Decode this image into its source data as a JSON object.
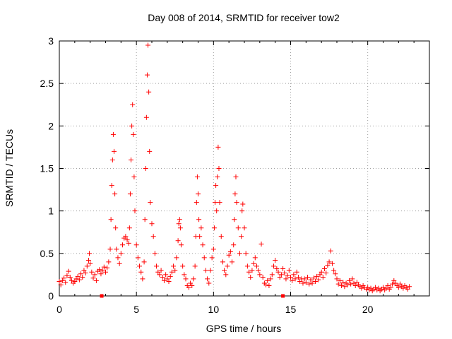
{
  "chart_data": {
    "type": "scatter",
    "title": "Day 008 of 2014, SRMTID for receiver tow2",
    "xlabel": "GPS time / hours",
    "ylabel": "SRMTID / TECUs",
    "xlim": [
      0,
      24
    ],
    "ylim": [
      0,
      3
    ],
    "xticks": [
      0,
      5,
      10,
      15,
      20
    ],
    "yticks": [
      0,
      0.5,
      1,
      1.5,
      2,
      2.5,
      3
    ],
    "xtick_labels": [
      "0",
      "5",
      "10",
      "15",
      "20"
    ],
    "ytick_labels": [
      "0",
      "0.5",
      "1",
      "1.5",
      "2",
      "2.5",
      "3"
    ],
    "grid": true,
    "marker": "plus",
    "color": "#ff0000",
    "series": [
      {
        "name": "SRMTID",
        "points": [
          [
            0.0,
            0.17
          ],
          [
            0.1,
            0.13
          ],
          [
            0.2,
            0.18
          ],
          [
            0.3,
            0.21
          ],
          [
            0.4,
            0.16
          ],
          [
            0.5,
            0.24
          ],
          [
            0.6,
            0.29
          ],
          [
            0.7,
            0.22
          ],
          [
            0.8,
            0.18
          ],
          [
            0.9,
            0.15
          ],
          [
            1.0,
            0.17
          ],
          [
            1.1,
            0.2
          ],
          [
            1.2,
            0.23
          ],
          [
            1.3,
            0.19
          ],
          [
            1.4,
            0.26
          ],
          [
            1.5,
            0.22
          ],
          [
            1.6,
            0.3
          ],
          [
            1.7,
            0.27
          ],
          [
            1.8,
            0.35
          ],
          [
            1.9,
            0.42
          ],
          [
            1.95,
            0.5
          ],
          [
            2.0,
            0.38
          ],
          [
            2.1,
            0.28
          ],
          [
            2.2,
            0.21
          ],
          [
            2.3,
            0.25
          ],
          [
            2.4,
            0.18
          ],
          [
            2.5,
            0.29
          ],
          [
            2.6,
            0.31
          ],
          [
            2.7,
            0.26
          ],
          [
            2.8,
            0.3
          ],
          [
            2.9,
            0.34
          ],
          [
            3.0,
            0.28
          ],
          [
            3.1,
            0.33
          ],
          [
            3.2,
            0.4
          ],
          [
            3.3,
            0.55
          ],
          [
            3.35,
            0.9
          ],
          [
            3.4,
            1.3
          ],
          [
            3.45,
            1.6
          ],
          [
            3.5,
            1.9
          ],
          [
            3.55,
            1.7
          ],
          [
            3.6,
            1.2
          ],
          [
            3.65,
            0.8
          ],
          [
            3.7,
            0.55
          ],
          [
            3.8,
            0.45
          ],
          [
            3.9,
            0.38
          ],
          [
            4.0,
            0.5
          ],
          [
            4.1,
            0.6
          ],
          [
            4.2,
            0.68
          ],
          [
            4.3,
            0.7
          ],
          [
            4.4,
            0.66
          ],
          [
            4.5,
            0.62
          ],
          [
            4.55,
            0.8
          ],
          [
            4.6,
            1.2
          ],
          [
            4.65,
            1.6
          ],
          [
            4.7,
            2.0
          ],
          [
            4.75,
            2.25
          ],
          [
            4.8,
            1.9
          ],
          [
            4.85,
            1.4
          ],
          [
            4.9,
            1.0
          ],
          [
            5.0,
            0.6
          ],
          [
            5.1,
            0.45
          ],
          [
            5.2,
            0.35
          ],
          [
            5.3,
            0.28
          ],
          [
            5.4,
            0.2
          ],
          [
            5.5,
            0.4
          ],
          [
            5.55,
            0.9
          ],
          [
            5.6,
            1.5
          ],
          [
            5.65,
            2.1
          ],
          [
            5.7,
            2.6
          ],
          [
            5.75,
            2.95
          ],
          [
            5.8,
            2.4
          ],
          [
            5.85,
            1.7
          ],
          [
            5.9,
            1.1
          ],
          [
            6.0,
            0.85
          ],
          [
            6.1,
            0.7
          ],
          [
            6.2,
            0.5
          ],
          [
            6.3,
            0.35
          ],
          [
            6.4,
            0.28
          ],
          [
            6.5,
            0.25
          ],
          [
            6.6,
            0.3
          ],
          [
            6.7,
            0.22
          ],
          [
            6.8,
            0.18
          ],
          [
            6.9,
            0.25
          ],
          [
            7.0,
            0.2
          ],
          [
            7.1,
            0.17
          ],
          [
            7.2,
            0.23
          ],
          [
            7.3,
            0.28
          ],
          [
            7.4,
            0.35
          ],
          [
            7.5,
            0.3
          ],
          [
            7.6,
            0.45
          ],
          [
            7.7,
            0.65
          ],
          [
            7.75,
            0.85
          ],
          [
            7.8,
            0.9
          ],
          [
            7.85,
            0.8
          ],
          [
            7.9,
            0.6
          ],
          [
            8.0,
            0.35
          ],
          [
            8.1,
            0.25
          ],
          [
            8.2,
            0.2
          ],
          [
            8.3,
            0.12
          ],
          [
            8.4,
            0.1
          ],
          [
            8.5,
            0.15
          ],
          [
            8.6,
            0.12
          ],
          [
            8.7,
            0.2
          ],
          [
            8.8,
            0.35
          ],
          [
            8.85,
            0.7
          ],
          [
            8.9,
            1.1
          ],
          [
            8.95,
            1.4
          ],
          [
            9.0,
            1.2
          ],
          [
            9.05,
            0.9
          ],
          [
            9.1,
            0.7
          ],
          [
            9.2,
            0.8
          ],
          [
            9.3,
            0.6
          ],
          [
            9.4,
            0.45
          ],
          [
            9.5,
            0.3
          ],
          [
            9.6,
            0.2
          ],
          [
            9.7,
            0.15
          ],
          [
            9.8,
            0.3
          ],
          [
            9.9,
            0.45
          ],
          [
            10.0,
            0.55
          ],
          [
            10.05,
            0.8
          ],
          [
            10.1,
            1.1
          ],
          [
            10.15,
            1.3
          ],
          [
            10.2,
            1.0
          ],
          [
            10.25,
            1.4
          ],
          [
            10.3,
            1.75
          ],
          [
            10.35,
            1.5
          ],
          [
            10.4,
            1.1
          ],
          [
            10.5,
            0.7
          ],
          [
            10.6,
            0.4
          ],
          [
            10.7,
            0.3
          ],
          [
            10.8,
            0.25
          ],
          [
            10.9,
            0.35
          ],
          [
            11.0,
            0.48
          ],
          [
            11.1,
            0.52
          ],
          [
            11.2,
            0.4
          ],
          [
            11.3,
            0.6
          ],
          [
            11.35,
            0.9
          ],
          [
            11.4,
            1.2
          ],
          [
            11.45,
            1.4
          ],
          [
            11.5,
            1.1
          ],
          [
            11.6,
            0.8
          ],
          [
            11.7,
            0.5
          ],
          [
            11.8,
            0.7
          ],
          [
            11.85,
            1.0
          ],
          [
            11.9,
            1.08
          ],
          [
            12.0,
            0.8
          ],
          [
            12.1,
            0.5
          ],
          [
            12.2,
            0.35
          ],
          [
            12.3,
            0.28
          ],
          [
            12.4,
            0.22
          ],
          [
            12.5,
            0.3
          ],
          [
            12.6,
            0.38
          ],
          [
            12.7,
            0.45
          ],
          [
            12.8,
            0.35
          ],
          [
            12.9,
            0.3
          ],
          [
            13.0,
            0.25
          ],
          [
            13.1,
            0.61
          ],
          [
            13.2,
            0.22
          ],
          [
            13.3,
            0.15
          ],
          [
            13.4,
            0.13
          ],
          [
            13.5,
            0.18
          ],
          [
            13.6,
            0.12
          ],
          [
            13.7,
            0.2
          ],
          [
            13.8,
            0.25
          ],
          [
            13.9,
            0.35
          ],
          [
            14.0,
            0.42
          ],
          [
            14.1,
            0.32
          ],
          [
            14.2,
            0.28
          ],
          [
            14.3,
            0.22
          ],
          [
            14.4,
            0.25
          ],
          [
            14.5,
            0.32
          ],
          [
            14.6,
            0.27
          ],
          [
            14.7,
            0.2
          ],
          [
            14.8,
            0.24
          ],
          [
            14.9,
            0.3
          ],
          [
            15.0,
            0.22
          ],
          [
            15.1,
            0.18
          ],
          [
            15.2,
            0.25
          ],
          [
            15.3,
            0.2
          ],
          [
            15.4,
            0.28
          ],
          [
            15.5,
            0.22
          ],
          [
            15.6,
            0.17
          ],
          [
            15.7,
            0.2
          ],
          [
            15.8,
            0.15
          ],
          [
            15.9,
            0.2
          ],
          [
            16.0,
            0.16
          ],
          [
            16.1,
            0.22
          ],
          [
            16.2,
            0.14
          ],
          [
            16.3,
            0.19
          ],
          [
            16.4,
            0.15
          ],
          [
            16.5,
            0.21
          ],
          [
            16.6,
            0.17
          ],
          [
            16.7,
            0.23
          ],
          [
            16.8,
            0.19
          ],
          [
            16.9,
            0.25
          ],
          [
            17.0,
            0.28
          ],
          [
            17.1,
            0.22
          ],
          [
            17.2,
            0.32
          ],
          [
            17.3,
            0.27
          ],
          [
            17.4,
            0.36
          ],
          [
            17.5,
            0.4
          ],
          [
            17.6,
            0.53
          ],
          [
            17.7,
            0.38
          ],
          [
            17.8,
            0.3
          ],
          [
            17.9,
            0.26
          ],
          [
            18.0,
            0.2
          ],
          [
            18.1,
            0.14
          ],
          [
            18.2,
            0.18
          ],
          [
            18.3,
            0.12
          ],
          [
            18.4,
            0.16
          ],
          [
            18.5,
            0.11
          ],
          [
            18.6,
            0.15
          ],
          [
            18.7,
            0.13
          ],
          [
            18.8,
            0.18
          ],
          [
            18.9,
            0.14
          ],
          [
            19.0,
            0.2
          ],
          [
            19.1,
            0.15
          ],
          [
            19.2,
            0.12
          ],
          [
            19.3,
            0.16
          ],
          [
            19.4,
            0.13
          ],
          [
            19.5,
            0.11
          ],
          [
            19.6,
            0.09
          ],
          [
            19.7,
            0.12
          ],
          [
            19.8,
            0.1
          ],
          [
            19.9,
            0.08
          ],
          [
            20.0,
            0.1
          ],
          [
            20.1,
            0.07
          ],
          [
            20.2,
            0.09
          ],
          [
            20.3,
            0.06
          ],
          [
            20.4,
            0.08
          ],
          [
            20.5,
            0.1
          ],
          [
            20.6,
            0.07
          ],
          [
            20.7,
            0.09
          ],
          [
            20.8,
            0.06
          ],
          [
            20.9,
            0.08
          ],
          [
            21.0,
            0.1
          ],
          [
            21.1,
            0.07
          ],
          [
            21.2,
            0.09
          ],
          [
            21.3,
            0.12
          ],
          [
            21.4,
            0.08
          ],
          [
            21.5,
            0.1
          ],
          [
            21.6,
            0.14
          ],
          [
            21.7,
            0.18
          ],
          [
            21.8,
            0.15
          ],
          [
            21.9,
            0.12
          ],
          [
            22.0,
            0.1
          ],
          [
            22.1,
            0.14
          ],
          [
            22.2,
            0.11
          ],
          [
            22.3,
            0.09
          ],
          [
            22.4,
            0.12
          ],
          [
            22.5,
            0.1
          ],
          [
            22.6,
            0.08
          ],
          [
            22.7,
            0.11
          ]
        ]
      }
    ],
    "zero_markers": [
      2.75,
      14.5
    ]
  }
}
